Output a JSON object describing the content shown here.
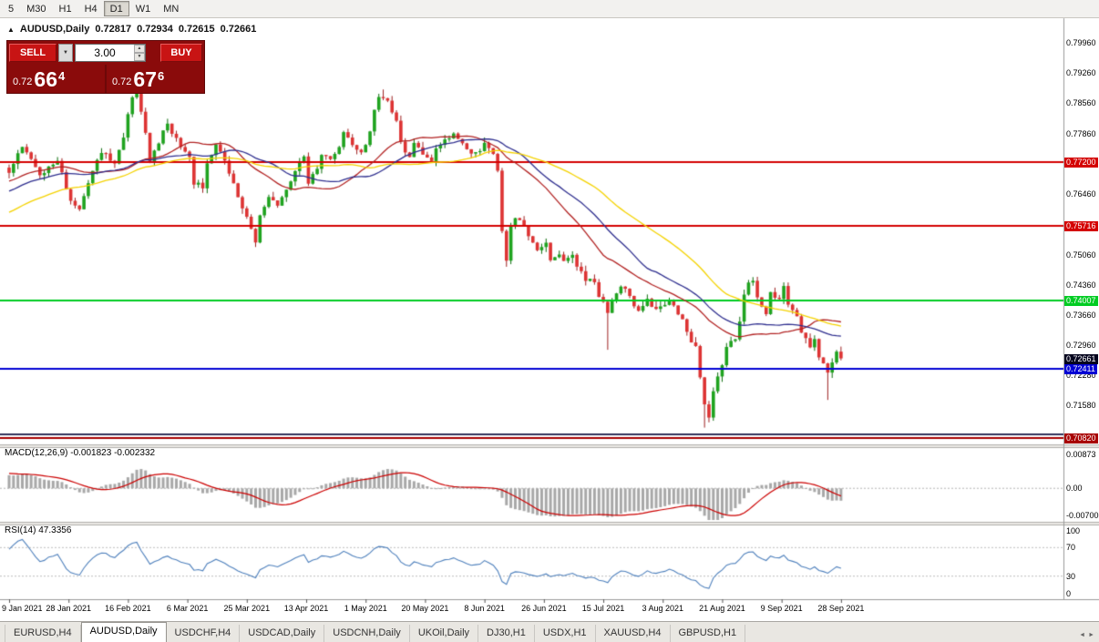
{
  "toolbar": {
    "timeframes": [
      {
        "label": "5",
        "active": false
      },
      {
        "label": "M30",
        "active": false
      },
      {
        "label": "H1",
        "active": false
      },
      {
        "label": "H4",
        "active": false
      },
      {
        "label": "D1",
        "active": true
      },
      {
        "label": "W1",
        "active": false
      },
      {
        "label": "MN",
        "active": false
      }
    ]
  },
  "chart_header": {
    "collapse_icon": "▲",
    "symbol": "AUDUSD,Daily",
    "open": "0.72817",
    "high": "0.72934",
    "low": "0.72615",
    "close": "0.72661"
  },
  "trade_panel": {
    "sell_label": "SELL",
    "buy_label": "BUY",
    "volume": "3.00",
    "dropdown_icon": "▼",
    "spin_up_icon": "▲",
    "spin_down_icon": "▼",
    "sell_price": {
      "prefix": "0.72",
      "big": "66",
      "sup": "4"
    },
    "buy_price": {
      "prefix": "0.72",
      "big": "67",
      "sup": "6"
    }
  },
  "indicators": {
    "macd_label": "MACD(12,26,9) -0.001823 -0.002332",
    "rsi_label": "RSI(14) 47.3356"
  },
  "tabs": [
    {
      "label": "EURUSD,H4",
      "active": false
    },
    {
      "label": "AUDUSD,Daily",
      "active": true
    },
    {
      "label": "USDCHF,H4",
      "active": false
    },
    {
      "label": "USDCAD,Daily",
      "active": false
    },
    {
      "label": "USDCNH,Daily",
      "active": false
    },
    {
      "label": "UKOil,Daily",
      "active": false
    },
    {
      "label": "DJ30,H1",
      "active": false
    },
    {
      "label": "USDX,H1",
      "active": false
    },
    {
      "label": "XAUUSD,H4",
      "active": false
    },
    {
      "label": "GBPUSD,H1",
      "active": false
    }
  ],
  "tab_scroll": {
    "left_icon": "◄",
    "right_icon": "►"
  },
  "chart_data": {
    "type": "candlestick",
    "symbol": "AUDUSD",
    "timeframe": "Daily",
    "last_ohlc": {
      "open": 0.72817,
      "high": 0.72934,
      "low": 0.72615,
      "close": 0.72661
    },
    "price_range": [
      0.70693,
      0.80107
    ],
    "x_labels": [
      "9 Jan 2021",
      "28 Jan 2021",
      "16 Feb 2021",
      "6 Mar 2021",
      "25 Mar 2021",
      "13 Apr 2021",
      "1 May 2021",
      "20 May 2021",
      "8 Jun 2021",
      "26 Jun 2021",
      "15 Jul 2021",
      "3 Aug 2021",
      "21 Aug 2021",
      "9 Sep 2021",
      "28 Sep 2021"
    ],
    "y_axis_ticks": [
      0.7996,
      0.7926,
      0.7856,
      0.7786,
      0.7646,
      0.7506,
      0.7436,
      0.7366,
      0.7296,
      0.7228,
      0.7158
    ],
    "horizontal_lines": [
      {
        "price": 0.772,
        "color": "#d40000",
        "width": 2,
        "labeled": true
      },
      {
        "price": 0.75716,
        "color": "#d40000",
        "width": 2,
        "labeled": true
      },
      {
        "price": 0.74007,
        "color": "#00cc22",
        "width": 2,
        "labeled": true
      },
      {
        "price": 0.72411,
        "color": "#0000d4",
        "width": 2,
        "labeled": true
      },
      {
        "price": 0.709,
        "color": "#33335c",
        "width": 2,
        "labeled": false
      },
      {
        "price": 0.7082,
        "color": "#a80000",
        "width": 2,
        "labeled": true
      }
    ],
    "current_price": {
      "value": 0.72661,
      "label_bg": "#05051e"
    },
    "moving_averages": [
      {
        "period": 24,
        "color": "#b22222"
      },
      {
        "period": 34,
        "color": "#2f2f8f"
      },
      {
        "period": 52,
        "color": "#f5d300"
      }
    ],
    "candle_colors": {
      "up": "#1fa31f",
      "down": "#dd3333",
      "up_wick": "#0e6e0e",
      "down_wick": "#9e2222"
    },
    "candles": {
      "count": 190,
      "warmup": 60,
      "close_anchors": [
        [
          -60,
          0.742
        ],
        [
          -48,
          0.7478
        ],
        [
          -36,
          0.7552
        ],
        [
          -24,
          0.7625
        ],
        [
          -12,
          0.7672
        ],
        [
          -4,
          0.7716
        ],
        [
          0,
          0.77
        ],
        [
          3,
          0.7755
        ],
        [
          7,
          0.769
        ],
        [
          11,
          0.7728
        ],
        [
          14,
          0.763
        ],
        [
          16,
          0.7612
        ],
        [
          19,
          0.77
        ],
        [
          21,
          0.7743
        ],
        [
          24,
          0.7718
        ],
        [
          26,
          0.7782
        ],
        [
          28,
          0.7868
        ],
        [
          29,
          0.7885
        ],
        [
          31,
          0.7788
        ],
        [
          32,
          0.7718
        ],
        [
          34,
          0.7768
        ],
        [
          36,
          0.7808
        ],
        [
          38,
          0.777
        ],
        [
          41,
          0.7738
        ],
        [
          42,
          0.7672
        ],
        [
          44,
          0.7662
        ],
        [
          45,
          0.7722
        ],
        [
          47,
          0.7758
        ],
        [
          49,
          0.772
        ],
        [
          51,
          0.7668
        ],
        [
          53,
          0.7618
        ],
        [
          54,
          0.7588
        ],
        [
          56,
          0.754
        ],
        [
          57,
          0.7592
        ],
        [
          59,
          0.7638
        ],
        [
          61,
          0.7618
        ],
        [
          63,
          0.7652
        ],
        [
          65,
          0.7698
        ],
        [
          67,
          0.7738
        ],
        [
          68,
          0.7674
        ],
        [
          70,
          0.7708
        ],
        [
          71,
          0.7742
        ],
        [
          73,
          0.7722
        ],
        [
          75,
          0.7758
        ],
        [
          76,
          0.7785
        ],
        [
          78,
          0.7758
        ],
        [
          80,
          0.7738
        ],
        [
          82,
          0.7788
        ],
        [
          83,
          0.7838
        ],
        [
          84,
          0.7868
        ],
        [
          86,
          0.7858
        ],
        [
          88,
          0.7812
        ],
        [
          89,
          0.7762
        ],
        [
          91,
          0.7728
        ],
        [
          92,
          0.7762
        ],
        [
          94,
          0.7738
        ],
        [
          96,
          0.7722
        ],
        [
          97,
          0.7748
        ],
        [
          99,
          0.7772
        ],
        [
          101,
          0.7788
        ],
        [
          103,
          0.7762
        ],
        [
          104,
          0.7752
        ],
        [
          106,
          0.7738
        ],
        [
          108,
          0.776
        ],
        [
          109,
          0.7748
        ],
        [
          110,
          0.7738
        ],
        [
          111,
          0.77
        ],
        [
          112,
          0.756
        ],
        [
          113,
          0.7495
        ],
        [
          114,
          0.7572
        ],
        [
          115,
          0.7595
        ],
        [
          117,
          0.7568
        ],
        [
          118,
          0.7545
        ],
        [
          120,
          0.7512
        ],
        [
          122,
          0.7532
        ],
        [
          123,
          0.7492
        ],
        [
          125,
          0.7512
        ],
        [
          126,
          0.7488
        ],
        [
          128,
          0.7505
        ],
        [
          130,
          0.7462
        ],
        [
          131,
          0.7442
        ],
        [
          133,
          0.7448
        ],
        [
          134,
          0.7412
        ],
        [
          136,
          0.7372
        ],
        [
          137,
          0.7398
        ],
        [
          139,
          0.7438
        ],
        [
          140,
          0.7422
        ],
        [
          142,
          0.739
        ],
        [
          143,
          0.7372
        ],
        [
          145,
          0.7398
        ],
        [
          147,
          0.7375
        ],
        [
          148,
          0.7388
        ],
        [
          150,
          0.7402
        ],
        [
          151,
          0.7385
        ],
        [
          153,
          0.7358
        ],
        [
          154,
          0.7322
        ],
        [
          156,
          0.7292
        ],
        [
          157,
          0.7228
        ],
        [
          158,
          0.7162
        ],
        [
          159,
          0.7135
        ],
        [
          160,
          0.7188
        ],
        [
          162,
          0.7252
        ],
        [
          163,
          0.729
        ],
        [
          165,
          0.7312
        ],
        [
          166,
          0.7355
        ],
        [
          167,
          0.7415
        ],
        [
          168,
          0.7442
        ],
        [
          169,
          0.7448
        ],
        [
          170,
          0.7402
        ],
        [
          172,
          0.7372
        ],
        [
          173,
          0.7418
        ],
        [
          175,
          0.7398
        ],
        [
          176,
          0.7432
        ],
        [
          177,
          0.7392
        ],
        [
          179,
          0.7358
        ],
        [
          180,
          0.7328
        ],
        [
          182,
          0.7295
        ],
        [
          183,
          0.7312
        ],
        [
          184,
          0.7268
        ],
        [
          186,
          0.7232
        ],
        [
          187,
          0.7252
        ],
        [
          188,
          0.72817
        ],
        [
          189,
          0.72661
        ]
      ],
      "wick_marks": [
        {
          "i": 29,
          "high": 0.791
        },
        {
          "i": 85,
          "high": 0.7888
        },
        {
          "i": 113,
          "low": 0.7478
        },
        {
          "i": 136,
          "low": 0.7286
        },
        {
          "i": 158,
          "low": 0.7106
        },
        {
          "i": 186,
          "low": 0.717
        }
      ]
    },
    "macd": {
      "fast": 12,
      "slow": 26,
      "signal_period": 9,
      "main_value": -0.001823,
      "signal_value": -0.002332,
      "range": [
        -0.007,
        0.00873
      ],
      "y_ticks": [
        {
          "value": 0.00873,
          "label": "0.00873"
        },
        {
          "value": 0,
          "label": "0.00"
        },
        {
          "value": -0.007,
          "label": "-0.00700"
        }
      ],
      "bar_color": "#a8a8a8",
      "line_color": "#cc0000"
    },
    "rsi": {
      "period": 14,
      "value": 47.3356,
      "range": [
        0,
        100
      ],
      "levels": [
        70,
        30
      ],
      "y_ticks": [
        100,
        70,
        30,
        0
      ],
      "line_color": "#4f81bd"
    }
  }
}
